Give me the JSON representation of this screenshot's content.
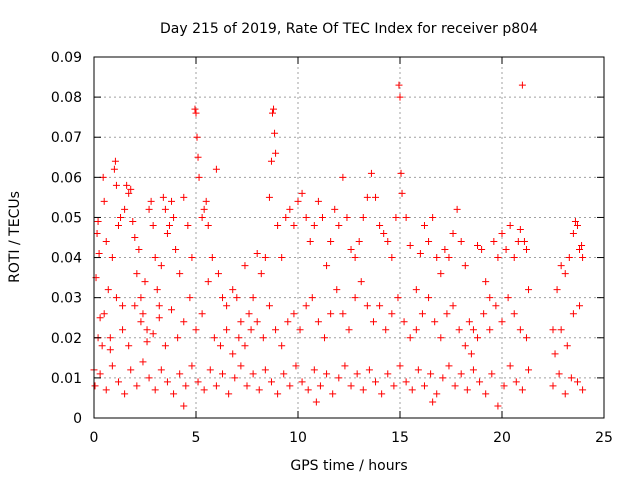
{
  "chart_data": {
    "type": "scatter",
    "title": "Day 215 of 2019, Rate Of TEC Index for receiver p804",
    "xlabel": "GPS time / hours",
    "ylabel": "ROTI / TECUs",
    "xlim": [
      0,
      25
    ],
    "ylim": [
      0,
      0.09
    ],
    "x_ticks": [
      0,
      5,
      10,
      15,
      20,
      25
    ],
    "x_tick_labels": [
      "0",
      "5",
      "10",
      "15",
      "20",
      "25"
    ],
    "y_ticks": [
      0,
      0.01,
      0.02,
      0.03,
      0.04,
      0.05,
      0.06,
      0.07,
      0.08,
      0.09
    ],
    "y_tick_labels": [
      "0",
      "0.01",
      "0.02",
      "0.03",
      "0.04",
      "0.05",
      "0.06",
      "0.07",
      "0.08",
      "0.09"
    ],
    "grid": true,
    "marker": "plus",
    "color": "#ff0000",
    "series": [
      {
        "points": [
          [
            0.0,
            0.012
          ],
          [
            0.1,
            0.035
          ],
          [
            0.15,
            0.046
          ],
          [
            0.2,
            0.049
          ],
          [
            0.25,
            0.041
          ],
          [
            0.3,
            0.025
          ],
          [
            0.4,
            0.018
          ],
          [
            0.45,
            0.06
          ],
          [
            0.5,
            0.054
          ],
          [
            0.6,
            0.044
          ],
          [
            0.7,
            0.032
          ],
          [
            0.8,
            0.02
          ],
          [
            0.9,
            0.04
          ],
          [
            1.0,
            0.062
          ],
          [
            1.05,
            0.064
          ],
          [
            1.1,
            0.058
          ],
          [
            1.2,
            0.048
          ],
          [
            1.3,
            0.05
          ],
          [
            1.4,
            0.028
          ],
          [
            1.5,
            0.052
          ],
          [
            1.6,
            0.058
          ],
          [
            1.7,
            0.056
          ],
          [
            1.8,
            0.057
          ],
          [
            1.9,
            0.049
          ],
          [
            2.0,
            0.045
          ],
          [
            2.1,
            0.036
          ],
          [
            2.2,
            0.042
          ],
          [
            2.3,
            0.03
          ],
          [
            2.4,
            0.026
          ],
          [
            2.5,
            0.034
          ],
          [
            2.6,
            0.022
          ],
          [
            2.7,
            0.052
          ],
          [
            2.8,
            0.054
          ],
          [
            2.9,
            0.048
          ],
          [
            3.0,
            0.04
          ],
          [
            3.1,
            0.032
          ],
          [
            3.2,
            0.028
          ],
          [
            3.3,
            0.038
          ],
          [
            3.4,
            0.055
          ],
          [
            3.5,
            0.052
          ],
          [
            3.6,
            0.046
          ],
          [
            3.7,
            0.048
          ],
          [
            3.8,
            0.054
          ],
          [
            3.9,
            0.05
          ],
          [
            4.0,
            0.042
          ],
          [
            4.2,
            0.036
          ],
          [
            4.4,
            0.055
          ],
          [
            4.6,
            0.048
          ],
          [
            4.8,
            0.04
          ],
          [
            4.95,
            0.077
          ],
          [
            5.0,
            0.076
          ],
          [
            5.05,
            0.07
          ],
          [
            5.1,
            0.065
          ],
          [
            5.15,
            0.06
          ],
          [
            5.3,
            0.05
          ],
          [
            5.4,
            0.052
          ],
          [
            5.5,
            0.054
          ],
          [
            5.6,
            0.048
          ],
          [
            5.8,
            0.04
          ],
          [
            6.0,
            0.062
          ],
          [
            6.1,
            0.036
          ],
          [
            6.3,
            0.03
          ],
          [
            6.5,
            0.028
          ],
          [
            6.8,
            0.032
          ],
          [
            7.0,
            0.03
          ],
          [
            7.2,
            0.024
          ],
          [
            7.4,
            0.038
          ],
          [
            7.6,
            0.026
          ],
          [
            7.8,
            0.03
          ],
          [
            8.0,
            0.041
          ],
          [
            8.2,
            0.036
          ],
          [
            8.4,
            0.04
          ],
          [
            8.6,
            0.055
          ],
          [
            8.7,
            0.064
          ],
          [
            8.75,
            0.076
          ],
          [
            8.8,
            0.077
          ],
          [
            8.85,
            0.071
          ],
          [
            8.9,
            0.066
          ],
          [
            9.0,
            0.048
          ],
          [
            9.2,
            0.04
          ],
          [
            9.4,
            0.05
          ],
          [
            9.6,
            0.052
          ],
          [
            9.8,
            0.048
          ],
          [
            10.0,
            0.054
          ],
          [
            10.2,
            0.056
          ],
          [
            10.4,
            0.05
          ],
          [
            10.6,
            0.044
          ],
          [
            10.8,
            0.048
          ],
          [
            11.0,
            0.054
          ],
          [
            11.2,
            0.05
          ],
          [
            11.4,
            0.038
          ],
          [
            11.6,
            0.044
          ],
          [
            11.8,
            0.052
          ],
          [
            12.0,
            0.048
          ],
          [
            12.2,
            0.06
          ],
          [
            12.4,
            0.05
          ],
          [
            12.6,
            0.042
          ],
          [
            12.8,
            0.04
          ],
          [
            13.0,
            0.044
          ],
          [
            13.2,
            0.05
          ],
          [
            13.4,
            0.055
          ],
          [
            13.6,
            0.061
          ],
          [
            13.8,
            0.055
          ],
          [
            14.0,
            0.048
          ],
          [
            14.2,
            0.046
          ],
          [
            14.4,
            0.044
          ],
          [
            14.6,
            0.04
          ],
          [
            14.8,
            0.05
          ],
          [
            14.95,
            0.083
          ],
          [
            15.0,
            0.08
          ],
          [
            15.05,
            0.061
          ],
          [
            15.1,
            0.056
          ],
          [
            15.3,
            0.05
          ],
          [
            15.5,
            0.043
          ],
          [
            15.8,
            0.032
          ],
          [
            16.0,
            0.041
          ],
          [
            16.2,
            0.048
          ],
          [
            16.4,
            0.044
          ],
          [
            16.6,
            0.05
          ],
          [
            16.8,
            0.04
          ],
          [
            17.0,
            0.036
          ],
          [
            17.2,
            0.042
          ],
          [
            17.4,
            0.04
          ],
          [
            17.6,
            0.046
          ],
          [
            17.8,
            0.052
          ],
          [
            18.0,
            0.044
          ],
          [
            18.2,
            0.038
          ],
          [
            18.4,
            0.024
          ],
          [
            18.6,
            0.022
          ],
          [
            18.8,
            0.043
          ],
          [
            19.0,
            0.042
          ],
          [
            19.2,
            0.034
          ],
          [
            19.4,
            0.03
          ],
          [
            19.6,
            0.044
          ],
          [
            19.8,
            0.04
          ],
          [
            20.0,
            0.046
          ],
          [
            20.2,
            0.042
          ],
          [
            20.4,
            0.048
          ],
          [
            20.6,
            0.04
          ],
          [
            20.8,
            0.044
          ],
          [
            20.9,
            0.047
          ],
          [
            21.0,
            0.083
          ],
          [
            21.1,
            0.044
          ],
          [
            21.2,
            0.042
          ],
          [
            21.3,
            0.032
          ],
          [
            22.5,
            0.022
          ],
          [
            22.7,
            0.032
          ],
          [
            22.9,
            0.038
          ],
          [
            23.1,
            0.036
          ],
          [
            23.3,
            0.04
          ],
          [
            23.5,
            0.046
          ],
          [
            23.6,
            0.049
          ],
          [
            23.7,
            0.048
          ],
          [
            23.8,
            0.042
          ],
          [
            23.9,
            0.043
          ],
          [
            23.95,
            0.04
          ],
          [
            0.05,
            0.008
          ],
          [
            0.3,
            0.011
          ],
          [
            0.6,
            0.007
          ],
          [
            0.9,
            0.013
          ],
          [
            1.2,
            0.009
          ],
          [
            1.5,
            0.006
          ],
          [
            1.8,
            0.012
          ],
          [
            2.1,
            0.008
          ],
          [
            2.4,
            0.014
          ],
          [
            2.7,
            0.01
          ],
          [
            3.0,
            0.007
          ],
          [
            3.3,
            0.012
          ],
          [
            3.6,
            0.009
          ],
          [
            3.9,
            0.006
          ],
          [
            4.2,
            0.011
          ],
          [
            4.5,
            0.008
          ],
          [
            4.8,
            0.013
          ],
          [
            5.1,
            0.009
          ],
          [
            5.4,
            0.007
          ],
          [
            5.7,
            0.012
          ],
          [
            6.0,
            0.008
          ],
          [
            6.3,
            0.011
          ],
          [
            6.6,
            0.006
          ],
          [
            6.9,
            0.01
          ],
          [
            7.2,
            0.013
          ],
          [
            7.5,
            0.008
          ],
          [
            7.8,
            0.011
          ],
          [
            8.1,
            0.007
          ],
          [
            8.4,
            0.012
          ],
          [
            8.7,
            0.009
          ],
          [
            9.0,
            0.006
          ],
          [
            9.3,
            0.011
          ],
          [
            9.6,
            0.008
          ],
          [
            9.9,
            0.013
          ],
          [
            10.2,
            0.009
          ],
          [
            10.5,
            0.007
          ],
          [
            10.8,
            0.012
          ],
          [
            11.1,
            0.008
          ],
          [
            11.4,
            0.011
          ],
          [
            11.7,
            0.006
          ],
          [
            12.0,
            0.01
          ],
          [
            12.3,
            0.013
          ],
          [
            12.6,
            0.008
          ],
          [
            12.9,
            0.011
          ],
          [
            13.2,
            0.007
          ],
          [
            13.5,
            0.012
          ],
          [
            13.8,
            0.009
          ],
          [
            14.1,
            0.006
          ],
          [
            14.4,
            0.011
          ],
          [
            14.7,
            0.008
          ],
          [
            15.0,
            0.013
          ],
          [
            15.3,
            0.009
          ],
          [
            15.6,
            0.007
          ],
          [
            15.9,
            0.012
          ],
          [
            16.2,
            0.008
          ],
          [
            16.5,
            0.011
          ],
          [
            16.8,
            0.006
          ],
          [
            17.1,
            0.01
          ],
          [
            17.4,
            0.013
          ],
          [
            17.7,
            0.008
          ],
          [
            18.0,
            0.011
          ],
          [
            18.3,
            0.007
          ],
          [
            18.6,
            0.012
          ],
          [
            18.9,
            0.009
          ],
          [
            19.2,
            0.006
          ],
          [
            19.5,
            0.011
          ],
          [
            19.8,
            0.003
          ],
          [
            20.1,
            0.008
          ],
          [
            20.4,
            0.013
          ],
          [
            20.7,
            0.009
          ],
          [
            21.0,
            0.007
          ],
          [
            21.3,
            0.012
          ],
          [
            22.5,
            0.008
          ],
          [
            22.8,
            0.011
          ],
          [
            23.1,
            0.006
          ],
          [
            23.4,
            0.01
          ],
          [
            23.7,
            0.009
          ],
          [
            23.95,
            0.007
          ],
          [
            4.4,
            0.003
          ],
          [
            10.9,
            0.004
          ],
          [
            16.6,
            0.004
          ],
          [
            0.2,
            0.02
          ],
          [
            0.5,
            0.026
          ],
          [
            0.8,
            0.017
          ],
          [
            1.1,
            0.03
          ],
          [
            1.4,
            0.022
          ],
          [
            1.7,
            0.018
          ],
          [
            2.0,
            0.028
          ],
          [
            2.3,
            0.024
          ],
          [
            2.6,
            0.019
          ],
          [
            2.9,
            0.021
          ],
          [
            3.2,
            0.025
          ],
          [
            3.5,
            0.018
          ],
          [
            3.8,
            0.027
          ],
          [
            4.1,
            0.02
          ],
          [
            4.4,
            0.024
          ],
          [
            4.7,
            0.03
          ],
          [
            5.0,
            0.022
          ],
          [
            5.3,
            0.026
          ],
          [
            5.6,
            0.034
          ],
          [
            5.9,
            0.02
          ],
          [
            6.2,
            0.018
          ],
          [
            6.5,
            0.022
          ],
          [
            6.8,
            0.016
          ],
          [
            7.1,
            0.02
          ],
          [
            7.4,
            0.018
          ],
          [
            7.7,
            0.022
          ],
          [
            8.0,
            0.024
          ],
          [
            8.3,
            0.02
          ],
          [
            8.6,
            0.028
          ],
          [
            8.9,
            0.022
          ],
          [
            9.2,
            0.018
          ],
          [
            9.5,
            0.024
          ],
          [
            9.8,
            0.026
          ],
          [
            10.1,
            0.022
          ],
          [
            10.4,
            0.028
          ],
          [
            10.7,
            0.03
          ],
          [
            11.0,
            0.024
          ],
          [
            11.3,
            0.02
          ],
          [
            11.6,
            0.026
          ],
          [
            11.9,
            0.032
          ],
          [
            12.2,
            0.026
          ],
          [
            12.5,
            0.022
          ],
          [
            12.8,
            0.03
          ],
          [
            13.1,
            0.034
          ],
          [
            13.4,
            0.028
          ],
          [
            13.7,
            0.024
          ],
          [
            14.0,
            0.028
          ],
          [
            14.3,
            0.022
          ],
          [
            14.6,
            0.026
          ],
          [
            14.9,
            0.03
          ],
          [
            15.2,
            0.024
          ],
          [
            15.5,
            0.02
          ],
          [
            15.8,
            0.022
          ],
          [
            16.1,
            0.026
          ],
          [
            16.4,
            0.03
          ],
          [
            16.7,
            0.024
          ],
          [
            17.0,
            0.02
          ],
          [
            17.3,
            0.026
          ],
          [
            17.6,
            0.028
          ],
          [
            17.9,
            0.022
          ],
          [
            18.2,
            0.018
          ],
          [
            18.5,
            0.016
          ],
          [
            18.8,
            0.02
          ],
          [
            19.1,
            0.026
          ],
          [
            19.4,
            0.022
          ],
          [
            19.7,
            0.028
          ],
          [
            20.0,
            0.024
          ],
          [
            20.3,
            0.03
          ],
          [
            20.6,
            0.026
          ],
          [
            20.9,
            0.022
          ],
          [
            21.2,
            0.02
          ],
          [
            22.6,
            0.016
          ],
          [
            22.9,
            0.022
          ],
          [
            23.2,
            0.018
          ],
          [
            23.5,
            0.026
          ],
          [
            23.8,
            0.028
          ]
        ]
      }
    ]
  }
}
